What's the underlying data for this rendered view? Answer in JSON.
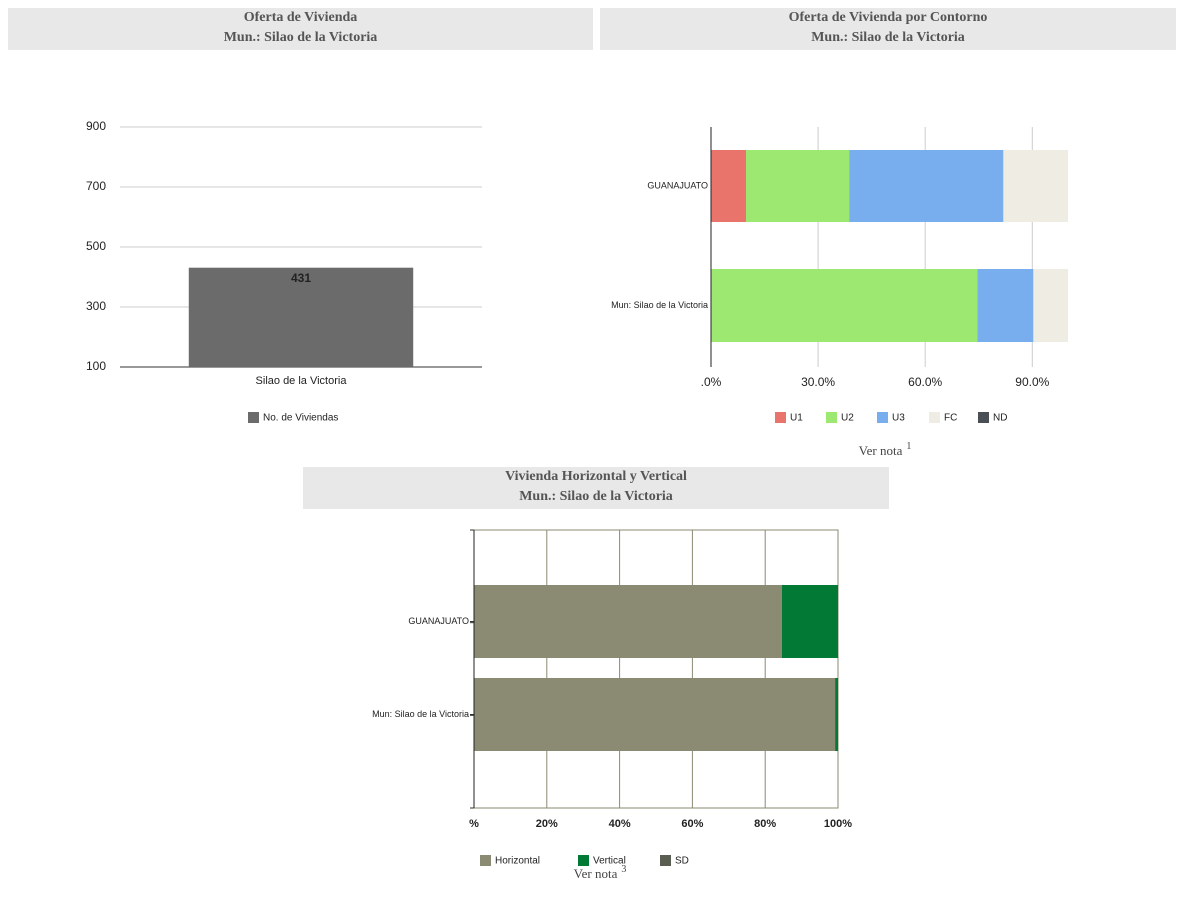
{
  "chart_data": [
    {
      "type": "bar",
      "title": "Oferta de Vivienda",
      "subtitle": "Mun.: Silao de la Victoria",
      "categories": [
        "Silao de la Victoria"
      ],
      "series": [
        {
          "name": "No. de Viviendas",
          "color": "#6b6b6b",
          "values": [
            431
          ]
        }
      ],
      "ylim": [
        100,
        900
      ],
      "yticks": [
        100,
        300,
        500,
        700,
        900
      ],
      "grid": true
    },
    {
      "type": "stacked_barh",
      "title": "Oferta de Vivienda por Contorno",
      "subtitle": "Mun.: Silao de la Victoria",
      "categories": [
        "GUANAJUATO",
        "Mun: Silao de la Victoria"
      ],
      "series": [
        {
          "name": "U1",
          "color": "#e8746c",
          "values": [
            9.8,
            0
          ]
        },
        {
          "name": "U2",
          "color": "#9de870",
          "values": [
            28.9,
            74.6
          ]
        },
        {
          "name": "U3",
          "color": "#78aeee",
          "values": [
            43.2,
            15.7
          ]
        },
        {
          "name": "FC",
          "color": "#efece4",
          "values": [
            18.1,
            9.7
          ]
        },
        {
          "name": "ND",
          "color": "#4a4f55",
          "values": [
            0,
            0
          ]
        }
      ],
      "xlim": [
        0,
        100
      ],
      "xticks": [
        {
          "value": 0,
          "label": ".0%"
        },
        {
          "value": 30,
          "label": "30.0%"
        },
        {
          "value": 60,
          "label": "60.0%"
        },
        {
          "value": 90,
          "label": "90.0%"
        }
      ],
      "grid": true,
      "note": "Ver nota",
      "note_ref": "1"
    },
    {
      "type": "stacked_barh",
      "title": "Vivienda Horizontal y Vertical",
      "subtitle": "Mun.: Silao de la Victoria",
      "categories": [
        "GUANAJUATO",
        "Mun: Silao de la Victoria"
      ],
      "series": [
        {
          "name": "Horizontal",
          "color": "#8b8a73",
          "values": [
            84.6,
            99.2
          ]
        },
        {
          "name": "Vertical",
          "color": "#027a36",
          "values": [
            15.4,
            0.8
          ]
        },
        {
          "name": "SD",
          "color": "#5a5d52",
          "values": [
            0,
            0
          ]
        }
      ],
      "xlim": [
        0,
        100
      ],
      "xticks": [
        {
          "value": 0,
          "label": "%"
        },
        {
          "value": 20,
          "label": "20%"
        },
        {
          "value": 40,
          "label": "40%"
        },
        {
          "value": 60,
          "label": "60%"
        },
        {
          "value": 80,
          "label": "80%"
        },
        {
          "value": 100,
          "label": "100%"
        }
      ],
      "grid": true,
      "note": "Ver nota",
      "note_ref": "3"
    }
  ]
}
